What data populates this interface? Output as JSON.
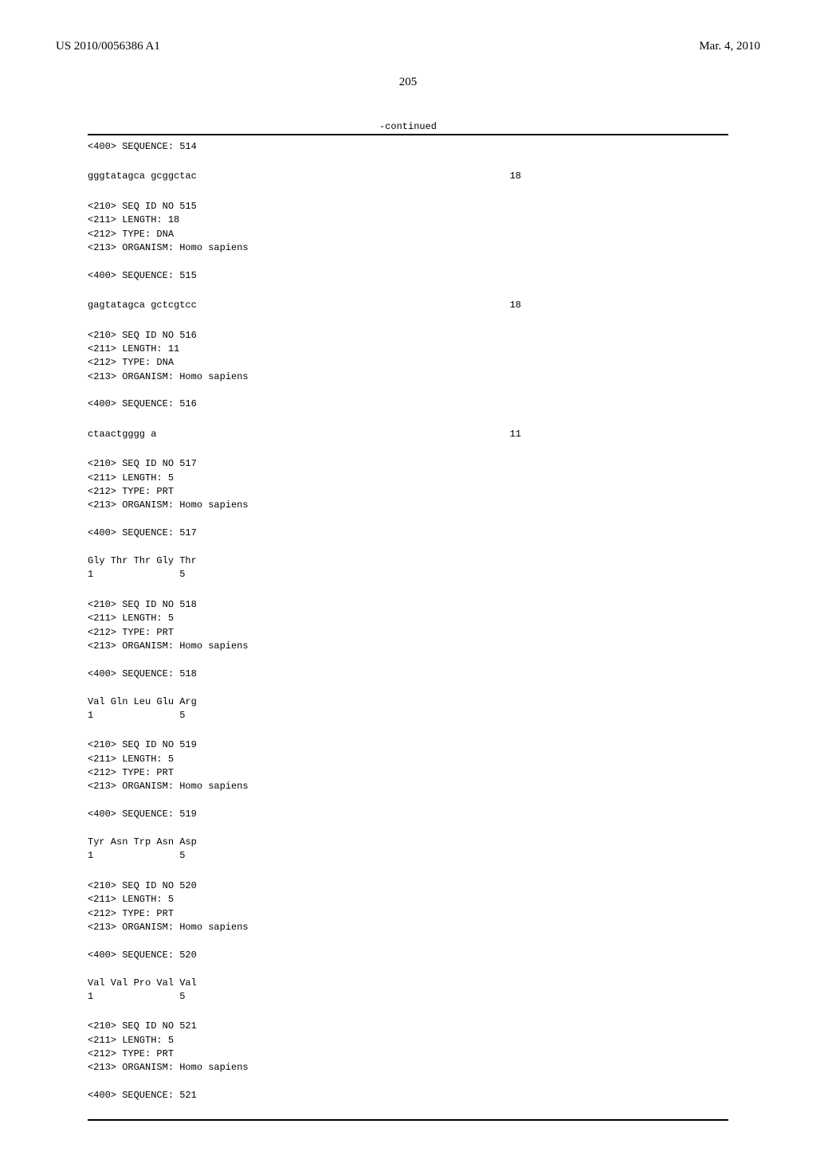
{
  "header": {
    "left": "US 2010/0056386 A1",
    "right": "Mar. 4, 2010"
  },
  "page_number": "205",
  "continued_label": "-continued",
  "blocks": [
    {
      "lines": [
        "<400> SEQUENCE: 514"
      ]
    },
    {
      "seq": {
        "text": "gggtatagca gcggctac",
        "len": "18"
      }
    },
    {
      "lines": [
        "<210> SEQ ID NO 515",
        "<211> LENGTH: 18",
        "<212> TYPE: DNA",
        "<213> ORGANISM: Homo sapiens",
        "",
        "<400> SEQUENCE: 515"
      ]
    },
    {
      "seq": {
        "text": "gagtatagca gctcgtcc",
        "len": "18"
      }
    },
    {
      "lines": [
        "<210> SEQ ID NO 516",
        "<211> LENGTH: 11",
        "<212> TYPE: DNA",
        "<213> ORGANISM: Homo sapiens",
        "",
        "<400> SEQUENCE: 516"
      ]
    },
    {
      "seq": {
        "text": "ctaactgggg a",
        "len": "11"
      }
    },
    {
      "lines": [
        "<210> SEQ ID NO 517",
        "<211> LENGTH: 5",
        "<212> TYPE: PRT",
        "<213> ORGANISM: Homo sapiens",
        "",
        "<400> SEQUENCE: 517",
        "",
        "Gly Thr Thr Gly Thr",
        "1               5"
      ]
    },
    {
      "lines": [
        "<210> SEQ ID NO 518",
        "<211> LENGTH: 5",
        "<212> TYPE: PRT",
        "<213> ORGANISM: Homo sapiens",
        "",
        "<400> SEQUENCE: 518",
        "",
        "Val Gln Leu Glu Arg",
        "1               5"
      ]
    },
    {
      "lines": [
        "<210> SEQ ID NO 519",
        "<211> LENGTH: 5",
        "<212> TYPE: PRT",
        "<213> ORGANISM: Homo sapiens",
        "",
        "<400> SEQUENCE: 519",
        "",
        "Tyr Asn Trp Asn Asp",
        "1               5"
      ]
    },
    {
      "lines": [
        "<210> SEQ ID NO 520",
        "<211> LENGTH: 5",
        "<212> TYPE: PRT",
        "<213> ORGANISM: Homo sapiens",
        "",
        "<400> SEQUENCE: 520",
        "",
        "Val Val Pro Val Val",
        "1               5"
      ]
    },
    {
      "lines": [
        "<210> SEQ ID NO 521",
        "<211> LENGTH: 5",
        "<212> TYPE: PRT",
        "<213> ORGANISM: Homo sapiens",
        "",
        "<400> SEQUENCE: 521"
      ]
    }
  ]
}
